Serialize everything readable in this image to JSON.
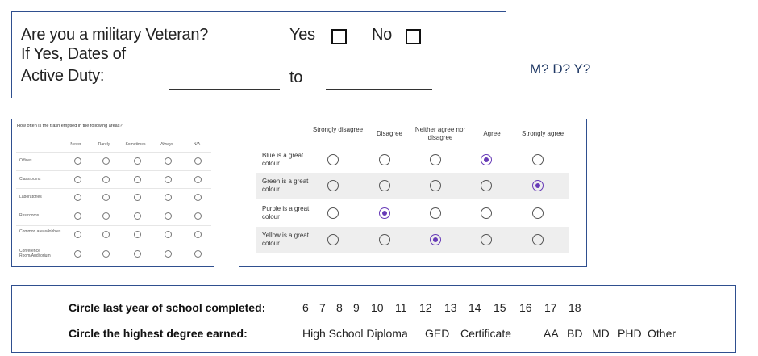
{
  "veteran": {
    "question": "Are you a military Veteran?",
    "yes_label": "Yes",
    "no_label": "No",
    "dates_line1": "If Yes, Dates of",
    "dates_line2": "Active Duty:",
    "to_label": "to"
  },
  "date_format_note": "M? D? Y?",
  "trash_survey": {
    "question": "How often is the trash emptied in the following areas?",
    "columns": [
      "Never",
      "Rarely",
      "Sometimes",
      "Always",
      "N/A"
    ],
    "rows": [
      {
        "label": "Offices"
      },
      {
        "label": "Classrooms"
      },
      {
        "label": "Laboratories"
      },
      {
        "label": "Restrooms"
      },
      {
        "label": "Common areas/lobbies"
      },
      {
        "label": "Conference Room/Auditorium"
      }
    ]
  },
  "color_survey": {
    "columns": [
      "Strongly disagree",
      "Disagree",
      "Neither agree nor disagree",
      "Agree",
      "Strongly agree"
    ],
    "rows": [
      {
        "label": "Blue is a great colour",
        "selected": 3
      },
      {
        "label": "Green is a great colour",
        "selected": 4
      },
      {
        "label": "Purple is a great colour",
        "selected": 1
      },
      {
        "label": "Yellow is a great colour",
        "selected": 2
      }
    ],
    "accent_color": "#673ab7"
  },
  "school": {
    "year_label": "Circle last year of school completed:",
    "years": [
      "6",
      "7",
      "8",
      "9",
      "10",
      "11",
      "12",
      "13",
      "14",
      "15",
      "16",
      "17",
      "18"
    ],
    "degree_label": "Circle the highest degree earned:",
    "degrees": [
      "High School Diploma",
      "GED",
      "Certificate",
      "AA",
      "BD",
      "MD",
      "PHD",
      "Other"
    ]
  }
}
